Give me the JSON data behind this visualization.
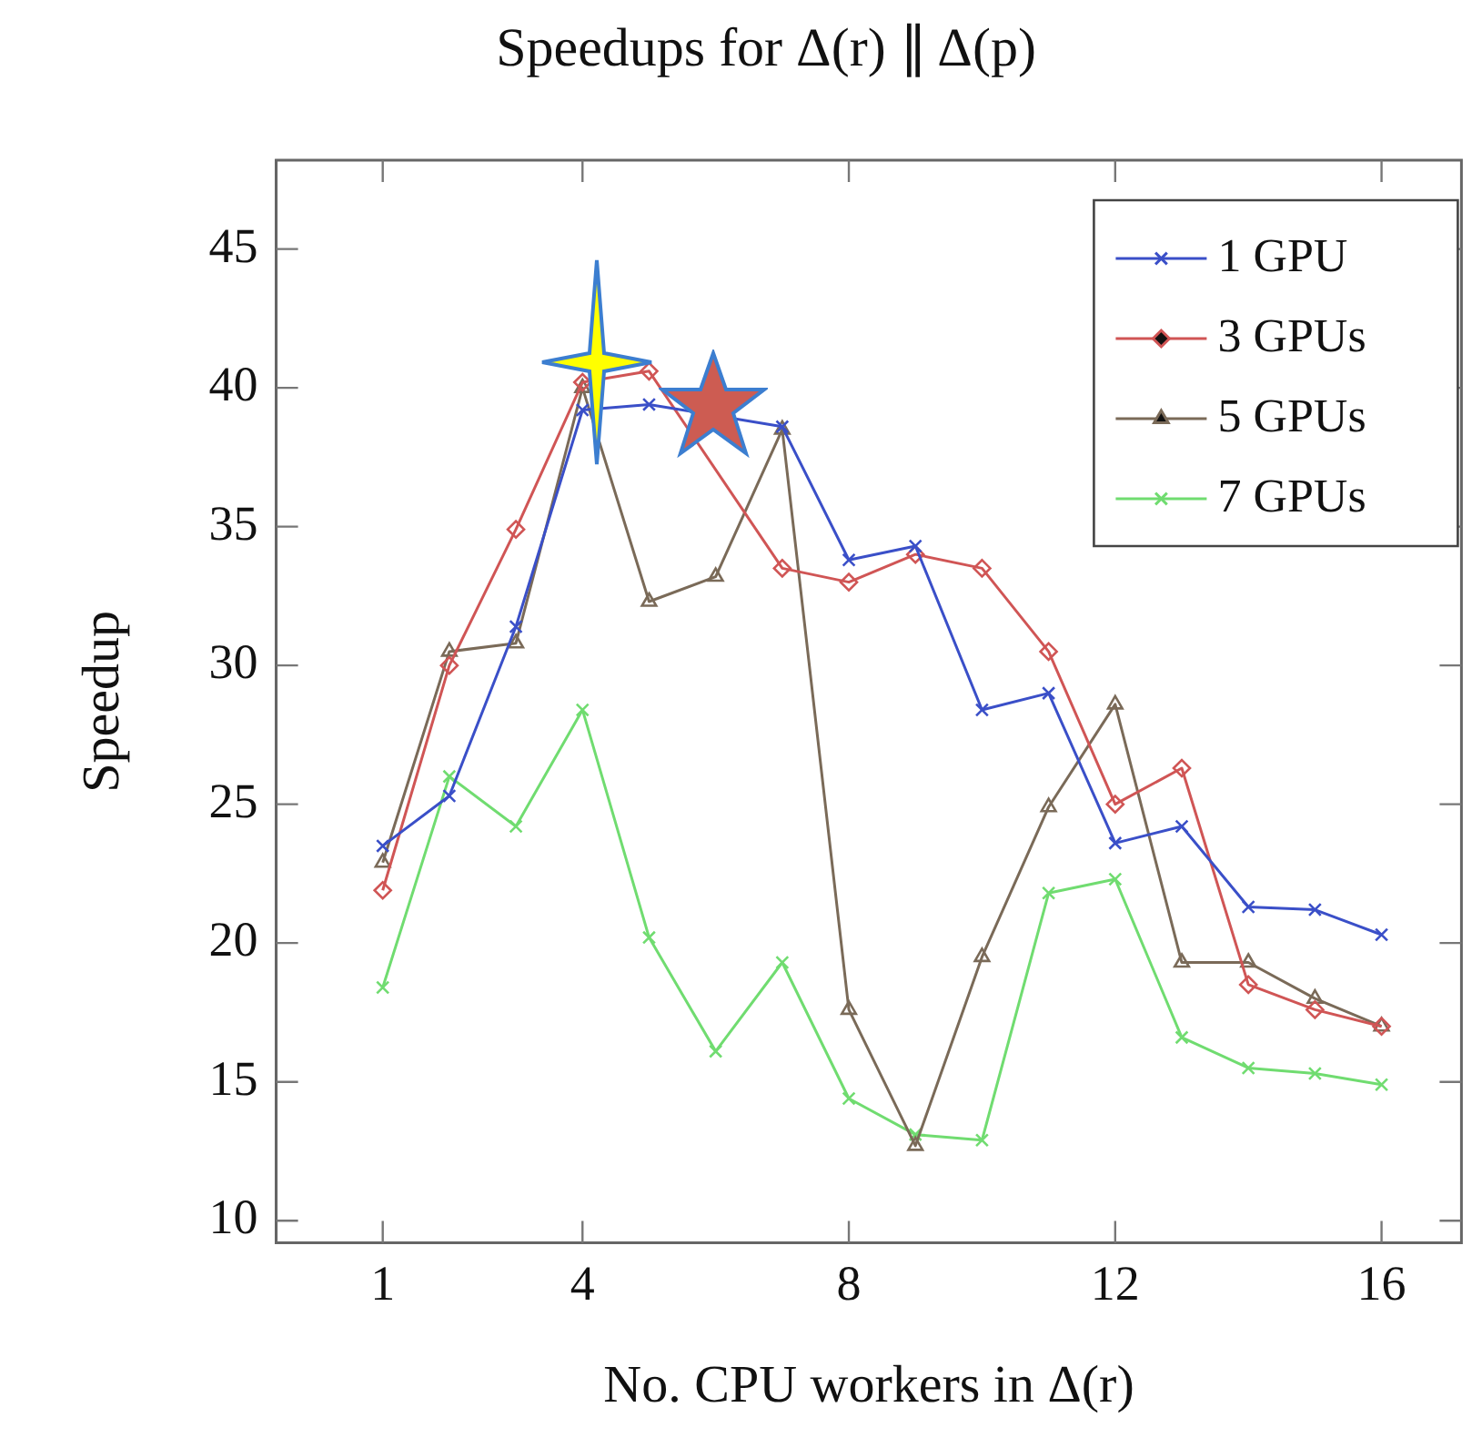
{
  "chart_data": {
    "type": "line",
    "title": "Speedups for Δ(r) ∥ Δ(p)",
    "xlabel": "No. CPU workers in Δ(r)",
    "ylabel": "Speedup",
    "x": [
      1,
      2,
      3,
      4,
      5,
      6,
      7,
      8,
      9,
      10,
      11,
      12,
      13,
      14,
      15,
      16
    ],
    "xlim": [
      -0.6,
      17.2
    ],
    "xticks": [
      1,
      4,
      8,
      12,
      16
    ],
    "ylim": [
      9.2,
      48.2
    ],
    "yticks": [
      10,
      15,
      20,
      25,
      30,
      35,
      40,
      45
    ],
    "grid": false,
    "legend": "top right",
    "line_style": "solid",
    "series": [
      {
        "name": "1 GPU",
        "color": "#3a4fc8",
        "marker": "cross",
        "values": [
          23.5,
          25.3,
          31.4,
          39.2,
          39.4,
          null,
          38.6,
          33.8,
          34.3,
          28.4,
          29.0,
          23.6,
          24.2,
          21.3,
          21.2,
          20.3
        ]
      },
      {
        "name": "3 GPUs",
        "color": "#d05555",
        "marker": "diamond",
        "values": [
          21.9,
          30.0,
          34.9,
          40.2,
          40.6,
          null,
          33.5,
          33.0,
          34.0,
          33.5,
          30.5,
          25.0,
          26.3,
          18.5,
          17.6,
          17.0
        ]
      },
      {
        "name": "5 GPUs",
        "color": "#7a6a58",
        "marker": "triangle",
        "values": [
          22.9,
          30.5,
          30.8,
          40.0,
          32.3,
          33.2,
          38.5,
          17.6,
          12.7,
          19.5,
          24.9,
          28.6,
          19.3,
          19.3,
          18.0,
          17.0
        ]
      },
      {
        "name": "7 GPUs",
        "color": "#70dc70",
        "marker": "cross",
        "values": [
          18.4,
          26.0,
          24.2,
          28.4,
          20.2,
          16.1,
          19.3,
          14.4,
          13.1,
          12.9,
          21.8,
          22.3,
          16.6,
          15.5,
          15.3,
          14.9
        ]
      }
    ]
  }
}
